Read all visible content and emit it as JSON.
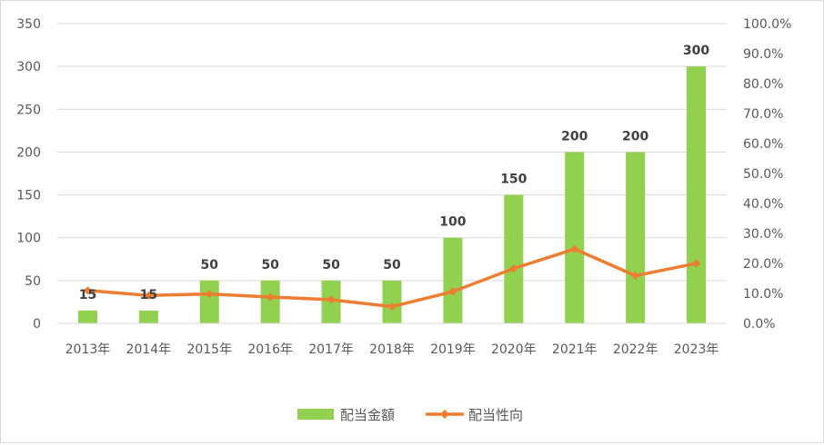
{
  "chart_data": {
    "type": "bar",
    "categories": [
      "2013年",
      "2014年",
      "2015年",
      "2016年",
      "2017年",
      "2018年",
      "2019年",
      "2020年",
      "2021年",
      "2022年",
      "2023年"
    ],
    "series": [
      {
        "name": "配当金額",
        "type": "bar",
        "axis": "left",
        "color": "#92d050",
        "values": [
          15,
          15,
          50,
          50,
          50,
          50,
          100,
          150,
          200,
          200,
          300
        ],
        "data_labels": [
          "15",
          "15",
          "50",
          "50",
          "50",
          "50",
          "100",
          "150",
          "200",
          "200",
          "300"
        ]
      },
      {
        "name": "配当性向",
        "type": "line",
        "axis": "right",
        "color": "#ed7d31",
        "values": [
          11.0,
          9.3,
          9.8,
          8.8,
          7.9,
          5.6,
          10.6,
          18.3,
          24.8,
          15.9,
          20.0
        ]
      }
    ],
    "y_left": {
      "min": 0,
      "max": 350,
      "ticks": [
        "0",
        "50",
        "100",
        "150",
        "200",
        "250",
        "300",
        "350"
      ]
    },
    "y_right": {
      "min": 0,
      "max": 100,
      "ticks": [
        "0.0%",
        "10.0%",
        "20.0%",
        "30.0%",
        "40.0%",
        "50.0%",
        "60.0%",
        "70.0%",
        "80.0%",
        "90.0%",
        "100.0%"
      ]
    },
    "grid": true,
    "legend_position": "bottom"
  }
}
